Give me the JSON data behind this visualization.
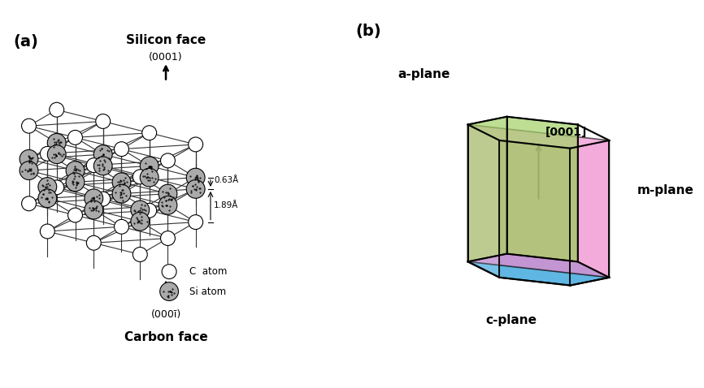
{
  "panel_a_label": "(a)",
  "panel_b_label": "(b)",
  "silicon_face": "Silicon face",
  "carbon_face": "Carbon face",
  "miller_top": "(0001)",
  "miller_bottom": "(000ī)",
  "dim1": "1.89Å",
  "dim2": "0.63Å",
  "c_atom_label": "C  atom",
  "si_atom_label": "Si atom",
  "b_label_0001": "[0001]",
  "b_label_aplane": "a-plane",
  "b_label_cplane": "c-plane",
  "b_label_mplane": "m-plane",
  "color_aplane": "#EE88CC",
  "color_cplane": "#44AADD",
  "color_cplane2": "#20C0B0",
  "color_mplane": "#99CC55",
  "bg_color": "#FFFFFF",
  "hex_color": "#000000",
  "si_atom_color": "#AAAAAA",
  "c_atom_color": "#FFFFFF",
  "bond_color": "#333333"
}
